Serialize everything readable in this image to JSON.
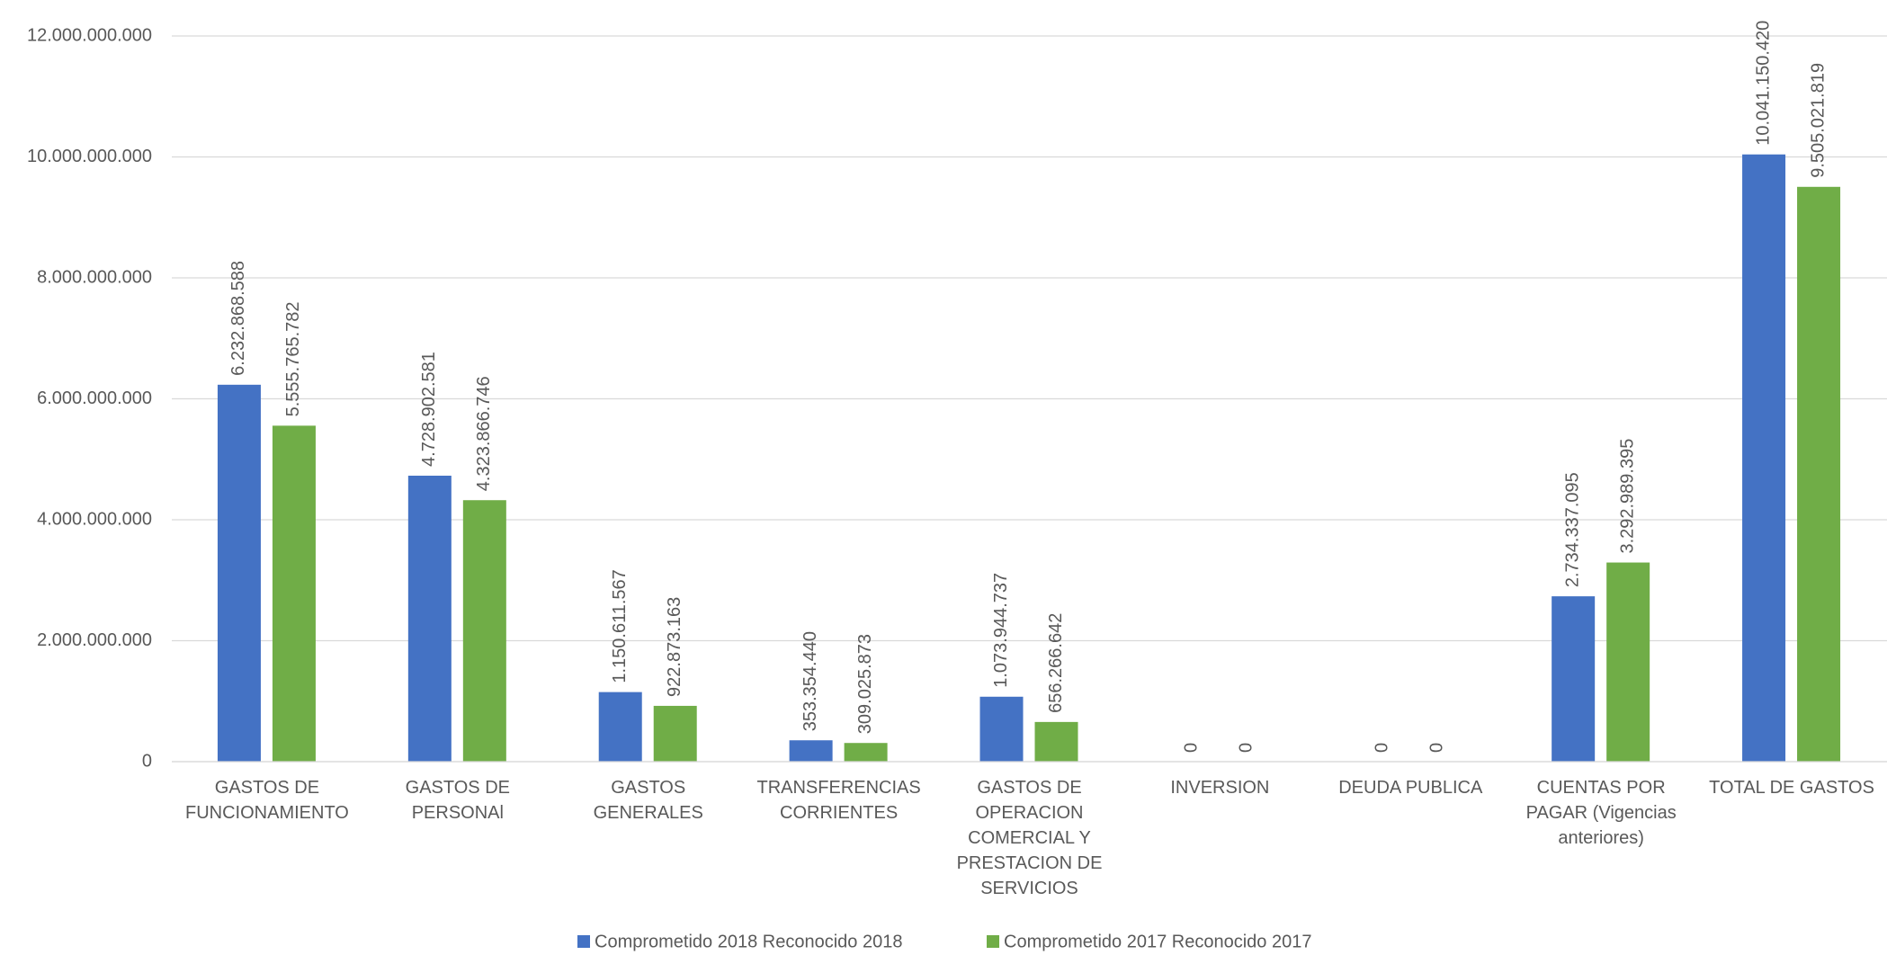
{
  "chart_data": {
    "type": "bar",
    "categories": [
      "GASTOS DE FUNCIONAMIENTO",
      "GASTOS DE PERSONAl",
      "GASTOS GENERALES",
      "TRANSFERENCIAS CORRIENTES",
      "GASTOS DE OPERACION COMERCIAL Y PRESTACION DE SERVICIOS",
      "INVERSION",
      "DEUDA PUBLICA",
      "CUENTAS POR PAGAR (Vigencias anteriores)",
      "TOTAL DE GASTOS"
    ],
    "series": [
      {
        "name": "Comprometido 2018 Reconocido 2018",
        "color": "#4472c4",
        "values": [
          6232868588,
          4728902581,
          1150611567,
          353354440,
          1073944737,
          0,
          0,
          2734337095,
          10041150420
        ],
        "value_labels": [
          "6.232.868.588",
          "4.728.902.581",
          "1.150.611.567",
          "353.354.440",
          "1.073.944.737",
          "0",
          "0",
          "2.734.337.095",
          "10.041.150.420"
        ]
      },
      {
        "name": "Comprometido 2017 Reconocido 2017",
        "color": "#70ad47",
        "values": [
          5555765782,
          4323866746,
          922873163,
          309025873,
          656266642,
          0,
          0,
          3292989395,
          9505021819
        ],
        "value_labels": [
          "5.555.765.782",
          "4.323.866.746",
          "922.873.163",
          "309.025.873",
          "656.266.642",
          "0",
          "0",
          "3.292.989.395",
          "9.505.021.819"
        ]
      }
    ],
    "ylim": [
      0,
      12000000000
    ],
    "yticks": [
      0,
      {
        "value": 2000000000,
        "label": "2.000.000.000"
      },
      {
        "value": 4000000000,
        "label": "4.000.000.000"
      },
      {
        "value": 6000000000,
        "label": "6.000.000.000"
      },
      {
        "value": 8000000000,
        "label": "8.000.000.000"
      },
      {
        "value": 10000000000,
        "label": "10.000.000.000"
      },
      {
        "value": 12000000000,
        "label": "12.000.000.000"
      }
    ],
    "grid": true,
    "legend": "bottom"
  }
}
